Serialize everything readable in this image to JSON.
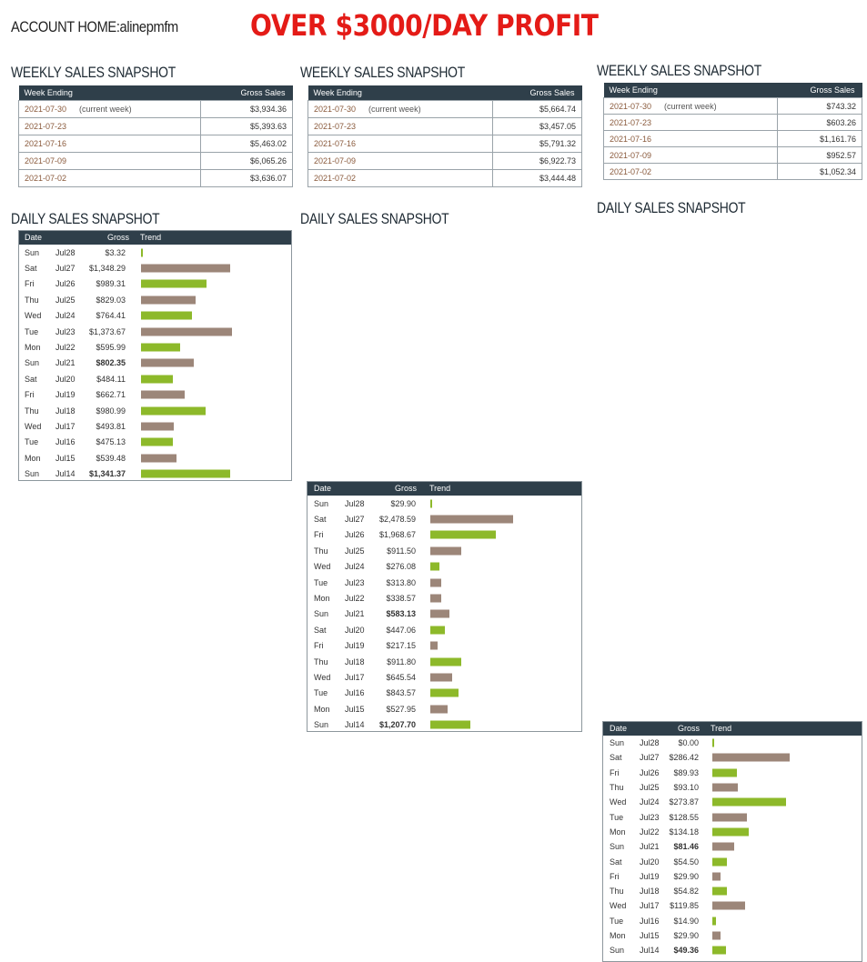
{
  "header": {
    "account": "ACCOUNT HOME:alinepmfm",
    "headline": "OVER $3000/DAY PROFIT"
  },
  "colors": {
    "header_bg": "#2f3f4a",
    "green": "#8db92a",
    "brown": "#9c8679",
    "headline": "#e41b17"
  },
  "panels": [
    {
      "weekly": {
        "title": "WEEKLY SALES SNAPSHOT",
        "col_week": "Week Ending",
        "col_gross": "Gross Sales",
        "rows": [
          {
            "date": "2021-07-30",
            "note": "(current week)",
            "gross": "$3,934.36"
          },
          {
            "date": "2021-07-23",
            "note": "",
            "gross": "$5,393.63"
          },
          {
            "date": "2021-07-16",
            "note": "",
            "gross": "$5,463.02"
          },
          {
            "date": "2021-07-09",
            "note": "",
            "gross": "$6,065.26"
          },
          {
            "date": "2021-07-02",
            "note": "",
            "gross": "$3,636.07"
          }
        ]
      },
      "daily": {
        "title": "DAILY SALES SNAPSHOT",
        "col_date": "Date",
        "col_gross": "Gross",
        "col_trend": "Trend",
        "rows": [
          {
            "day": "Sun",
            "date": "Jul28",
            "gross": "$3.32",
            "value": 3.32,
            "bold": false,
            "color": "green"
          },
          {
            "day": "Sat",
            "date": "Jul27",
            "gross": "$1,348.29",
            "value": 1348.29,
            "bold": false,
            "color": "brown"
          },
          {
            "day": "Fri",
            "date": "Jul26",
            "gross": "$989.31",
            "value": 989.31,
            "bold": false,
            "color": "green"
          },
          {
            "day": "Thu",
            "date": "Jul25",
            "gross": "$829.03",
            "value": 829.03,
            "bold": false,
            "color": "brown"
          },
          {
            "day": "Wed",
            "date": "Jul24",
            "gross": "$764.41",
            "value": 764.41,
            "bold": false,
            "color": "green"
          },
          {
            "day": "Tue",
            "date": "Jul23",
            "gross": "$1,373.67",
            "value": 1373.67,
            "bold": false,
            "color": "brown"
          },
          {
            "day": "Mon",
            "date": "Jul22",
            "gross": "$595.99",
            "value": 595.99,
            "bold": false,
            "color": "green"
          },
          {
            "day": "Sun",
            "date": "Jul21",
            "gross": "$802.35",
            "value": 802.35,
            "bold": true,
            "color": "brown"
          },
          {
            "day": "Sat",
            "date": "Jul20",
            "gross": "$484.11",
            "value": 484.11,
            "bold": false,
            "color": "green"
          },
          {
            "day": "Fri",
            "date": "Jul19",
            "gross": "$662.71",
            "value": 662.71,
            "bold": false,
            "color": "brown"
          },
          {
            "day": "Thu",
            "date": "Jul18",
            "gross": "$980.99",
            "value": 980.99,
            "bold": false,
            "color": "green"
          },
          {
            "day": "Wed",
            "date": "Jul17",
            "gross": "$493.81",
            "value": 493.81,
            "bold": false,
            "color": "brown"
          },
          {
            "day": "Tue",
            "date": "Jul16",
            "gross": "$475.13",
            "value": 475.13,
            "bold": false,
            "color": "green"
          },
          {
            "day": "Mon",
            "date": "Jul15",
            "gross": "$539.48",
            "value": 539.48,
            "bold": false,
            "color": "brown"
          },
          {
            "day": "Sun",
            "date": "Jul14",
            "gross": "$1,341.37",
            "value": 1341.37,
            "bold": true,
            "color": "green"
          }
        ]
      }
    },
    {
      "weekly": {
        "title": "WEEKLY SALES SNAPSHOT",
        "col_week": "Week Ending",
        "col_gross": "Gross Sales",
        "rows": [
          {
            "date": "2021-07-30",
            "note": "(current week)",
            "gross": "$5,664.74"
          },
          {
            "date": "2021-07-23",
            "note": "",
            "gross": "$3,457.05"
          },
          {
            "date": "2021-07-16",
            "note": "",
            "gross": "$5,791.32"
          },
          {
            "date": "2021-07-09",
            "note": "",
            "gross": "$6,922.73"
          },
          {
            "date": "2021-07-02",
            "note": "",
            "gross": "$3,444.48"
          }
        ]
      },
      "daily": {
        "title": "DAILY SALES SNAPSHOT",
        "col_date": "Date",
        "col_gross": "Gross",
        "col_trend": "Trend",
        "rows": [
          {
            "day": "Sun",
            "date": "Jul28",
            "gross": "$29.90",
            "value": 29.9,
            "bold": false,
            "color": "green"
          },
          {
            "day": "Sat",
            "date": "Jul27",
            "gross": "$2,478.59",
            "value": 2478.59,
            "bold": false,
            "color": "brown"
          },
          {
            "day": "Fri",
            "date": "Jul26",
            "gross": "$1,968.67",
            "value": 1968.67,
            "bold": false,
            "color": "green"
          },
          {
            "day": "Thu",
            "date": "Jul25",
            "gross": "$911.50",
            "value": 911.5,
            "bold": false,
            "color": "brown"
          },
          {
            "day": "Wed",
            "date": "Jul24",
            "gross": "$276.08",
            "value": 276.08,
            "bold": false,
            "color": "green"
          },
          {
            "day": "Tue",
            "date": "Jul23",
            "gross": "$313.80",
            "value": 313.8,
            "bold": false,
            "color": "brown"
          },
          {
            "day": "Mon",
            "date": "Jul22",
            "gross": "$338.57",
            "value": 338.57,
            "bold": false,
            "color": "brown"
          },
          {
            "day": "Sun",
            "date": "Jul21",
            "gross": "$583.13",
            "value": 583.13,
            "bold": true,
            "color": "brown"
          },
          {
            "day": "Sat",
            "date": "Jul20",
            "gross": "$447.06",
            "value": 447.06,
            "bold": false,
            "color": "green"
          },
          {
            "day": "Fri",
            "date": "Jul19",
            "gross": "$217.15",
            "value": 217.15,
            "bold": false,
            "color": "brown"
          },
          {
            "day": "Thu",
            "date": "Jul18",
            "gross": "$911.80",
            "value": 911.8,
            "bold": false,
            "color": "green"
          },
          {
            "day": "Wed",
            "date": "Jul17",
            "gross": "$645.54",
            "value": 645.54,
            "bold": false,
            "color": "brown"
          },
          {
            "day": "Tue",
            "date": "Jul16",
            "gross": "$843.57",
            "value": 843.57,
            "bold": false,
            "color": "green"
          },
          {
            "day": "Mon",
            "date": "Jul15",
            "gross": "$527.95",
            "value": 527.95,
            "bold": false,
            "color": "brown"
          },
          {
            "day": "Sun",
            "date": "Jul14",
            "gross": "$1,207.70",
            "value": 1207.7,
            "bold": true,
            "color": "green"
          }
        ]
      }
    },
    {
      "weekly": {
        "title": "WEEKLY SALES SNAPSHOT",
        "col_week": "Week Ending",
        "col_gross": "Gross Sales",
        "rows": [
          {
            "date": "2021-07-30",
            "note": "(current week)",
            "gross": "$743.32"
          },
          {
            "date": "2021-07-23",
            "note": "",
            "gross": "$603.26"
          },
          {
            "date": "2021-07-16",
            "note": "",
            "gross": "$1,161.76"
          },
          {
            "date": "2021-07-09",
            "note": "",
            "gross": "$952.57"
          },
          {
            "date": "2021-07-02",
            "note": "",
            "gross": "$1,052.34"
          }
        ]
      },
      "daily": {
        "title": "DAILY SALES SNAPSHOT",
        "col_date": "Date",
        "col_gross": "Gross",
        "col_trend": "Trend",
        "rows": [
          {
            "day": "Sun",
            "date": "Jul28",
            "gross": "$0.00",
            "value": 0.0,
            "bold": false,
            "color": "green"
          },
          {
            "day": "Sat",
            "date": "Jul27",
            "gross": "$286.42",
            "value": 286.42,
            "bold": false,
            "color": "brown"
          },
          {
            "day": "Fri",
            "date": "Jul26",
            "gross": "$89.93",
            "value": 89.93,
            "bold": false,
            "color": "green"
          },
          {
            "day": "Thu",
            "date": "Jul25",
            "gross": "$93.10",
            "value": 93.1,
            "bold": false,
            "color": "brown"
          },
          {
            "day": "Wed",
            "date": "Jul24",
            "gross": "$273.87",
            "value": 273.87,
            "bold": false,
            "color": "green"
          },
          {
            "day": "Tue",
            "date": "Jul23",
            "gross": "$128.55",
            "value": 128.55,
            "bold": false,
            "color": "brown"
          },
          {
            "day": "Mon",
            "date": "Jul22",
            "gross": "$134.18",
            "value": 134.18,
            "bold": false,
            "color": "green"
          },
          {
            "day": "Sun",
            "date": "Jul21",
            "gross": "$81.46",
            "value": 81.46,
            "bold": true,
            "color": "brown"
          },
          {
            "day": "Sat",
            "date": "Jul20",
            "gross": "$54.50",
            "value": 54.5,
            "bold": false,
            "color": "green"
          },
          {
            "day": "Fri",
            "date": "Jul19",
            "gross": "$29.90",
            "value": 29.9,
            "bold": false,
            "color": "brown"
          },
          {
            "day": "Thu",
            "date": "Jul18",
            "gross": "$54.82",
            "value": 54.82,
            "bold": false,
            "color": "green"
          },
          {
            "day": "Wed",
            "date": "Jul17",
            "gross": "$119.85",
            "value": 119.85,
            "bold": false,
            "color": "brown"
          },
          {
            "day": "Tue",
            "date": "Jul16",
            "gross": "$14.90",
            "value": 14.9,
            "bold": false,
            "color": "green"
          },
          {
            "day": "Mon",
            "date": "Jul15",
            "gross": "$29.90",
            "value": 29.9,
            "bold": false,
            "color": "brown"
          },
          {
            "day": "Sun",
            "date": "Jul14",
            "gross": "$49.36",
            "value": 49.36,
            "bold": true,
            "color": "green"
          }
        ]
      }
    }
  ]
}
